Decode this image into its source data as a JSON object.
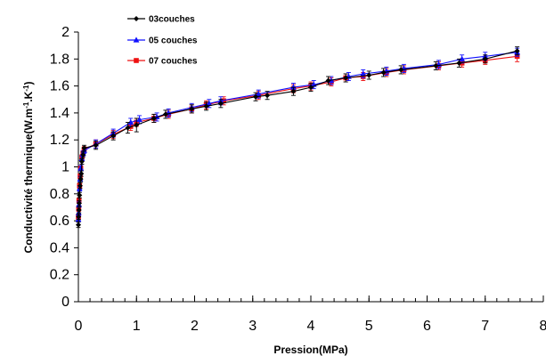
{
  "chart_data": {
    "type": "line",
    "xlabel": "Pression(MPa)",
    "ylabel_parts": [
      "Conductivité thermique(W.m",
      "-1",
      ".K",
      "-1",
      ")"
    ],
    "xlim": [
      0,
      8
    ],
    "ylim": [
      0,
      2
    ],
    "x_ticks": [
      "0",
      "1",
      "2",
      "3",
      "4",
      "5",
      "6",
      "7",
      "8"
    ],
    "y_ticks": [
      "0",
      "0.2",
      "0.4",
      "0.6",
      "0.8",
      "1",
      "1.2",
      "1.4",
      "1.6",
      "1.8",
      "2"
    ],
    "x_minor_step": 0.2,
    "legend_position": "top-left",
    "series": [
      {
        "name": "03couches",
        "color": "#000000",
        "marker": "diamond",
        "x": [
          0.0,
          0.005,
          0.01,
          0.015,
          0.02,
          0.03,
          0.04,
          0.05,
          0.06,
          0.08,
          0.1,
          0.3,
          0.6,
          0.85,
          1.0,
          1.3,
          1.5,
          1.95,
          2.2,
          2.45,
          3.05,
          3.25,
          3.7,
          4.0,
          4.3,
          4.6,
          5.0,
          5.25,
          5.55,
          6.15,
          6.55,
          7.0,
          7.55
        ],
        "y": [
          0.57,
          0.63,
          0.68,
          0.73,
          0.79,
          0.86,
          0.91,
          0.95,
          1.04,
          1.09,
          1.14,
          1.16,
          1.23,
          1.29,
          1.31,
          1.36,
          1.39,
          1.43,
          1.45,
          1.47,
          1.52,
          1.53,
          1.56,
          1.59,
          1.64,
          1.66,
          1.68,
          1.7,
          1.72,
          1.75,
          1.77,
          1.8,
          1.86
        ],
        "err": [
          0.02,
          0.02,
          0.02,
          0.02,
          0.02,
          0.02,
          0.02,
          0.02,
          0.02,
          0.02,
          0.02,
          0.03,
          0.03,
          0.04,
          0.05,
          0.03,
          0.03,
          0.03,
          0.03,
          0.03,
          0.03,
          0.03,
          0.03,
          0.03,
          0.03,
          0.03,
          0.03,
          0.03,
          0.03,
          0.03,
          0.03,
          0.03,
          0.03
        ]
      },
      {
        "name": "05 couches",
        "color": "#1010ff",
        "marker": "triangle",
        "x": [
          0.0,
          0.005,
          0.01,
          0.02,
          0.03,
          0.04,
          0.06,
          0.08,
          0.1,
          0.3,
          0.6,
          0.9,
          1.05,
          1.35,
          1.55,
          1.95,
          2.25,
          2.45,
          3.1,
          3.7,
          4.05,
          4.35,
          4.65,
          4.9,
          5.3,
          5.6,
          6.2,
          6.6,
          7.0,
          7.55
        ],
        "y": [
          0.61,
          0.66,
          0.72,
          0.84,
          0.91,
          0.99,
          1.06,
          1.1,
          1.12,
          1.17,
          1.25,
          1.33,
          1.35,
          1.37,
          1.4,
          1.44,
          1.47,
          1.49,
          1.54,
          1.59,
          1.61,
          1.64,
          1.67,
          1.69,
          1.71,
          1.73,
          1.76,
          1.8,
          1.82,
          1.85
        ],
        "err": [
          0.02,
          0.02,
          0.02,
          0.02,
          0.02,
          0.02,
          0.02,
          0.02,
          0.02,
          0.03,
          0.03,
          0.03,
          0.03,
          0.03,
          0.03,
          0.03,
          0.03,
          0.03,
          0.03,
          0.03,
          0.03,
          0.03,
          0.03,
          0.03,
          0.03,
          0.03,
          0.03,
          0.03,
          0.03,
          0.03
        ]
      },
      {
        "name": "07 couches",
        "color": "#ee1111",
        "marker": "square",
        "x": [
          0.0,
          0.005,
          0.01,
          0.02,
          0.03,
          0.04,
          0.06,
          0.08,
          0.1,
          0.3,
          0.6,
          0.9,
          1.0,
          1.3,
          1.55,
          1.95,
          2.2,
          2.5,
          3.1,
          3.7,
          4.0,
          4.35,
          4.6,
          4.9,
          5.3,
          5.6,
          6.2,
          6.6,
          7.0,
          7.55
        ],
        "y": [
          0.63,
          0.69,
          0.75,
          0.86,
          0.93,
          0.99,
          1.07,
          1.1,
          1.13,
          1.17,
          1.24,
          1.3,
          1.33,
          1.36,
          1.39,
          1.43,
          1.46,
          1.49,
          1.53,
          1.58,
          1.6,
          1.63,
          1.66,
          1.67,
          1.7,
          1.72,
          1.75,
          1.77,
          1.79,
          1.82
        ],
        "err": [
          0.02,
          0.02,
          0.02,
          0.02,
          0.02,
          0.02,
          0.02,
          0.02,
          0.02,
          0.03,
          0.03,
          0.03,
          0.03,
          0.03,
          0.03,
          0.03,
          0.03,
          0.03,
          0.03,
          0.03,
          0.03,
          0.03,
          0.03,
          0.03,
          0.03,
          0.03,
          0.03,
          0.03,
          0.03,
          0.04
        ]
      }
    ]
  }
}
